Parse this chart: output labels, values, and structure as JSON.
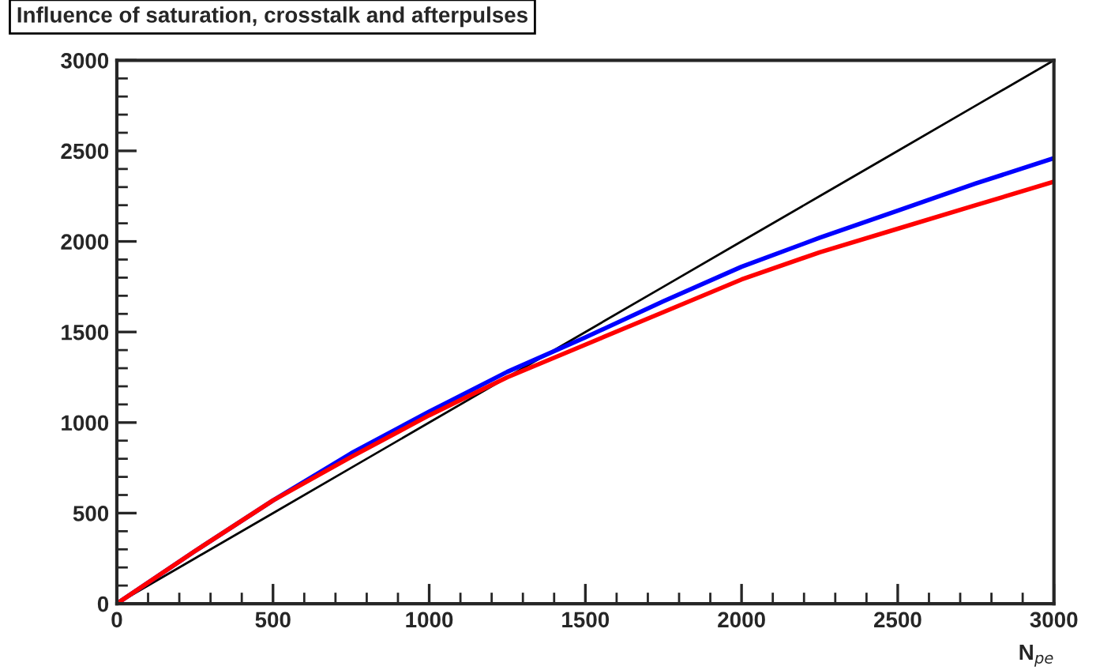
{
  "chart_data": {
    "type": "line",
    "title": "Influence of saturation, crosstalk and afterpulses",
    "xlabel": "N$_{pe}$",
    "x": [
      0,
      250,
      500,
      750,
      1000,
      1250,
      1500,
      1750,
      2000,
      2250,
      2500,
      2750,
      3000
    ],
    "series": [
      {
        "color": "#000000",
        "values": [
          0,
          250,
          500,
          750,
          1000,
          1250,
          1500,
          1750,
          2000,
          2250,
          2500,
          2750,
          3000
        ]
      },
      {
        "color": "#0000ff",
        "values": [
          0,
          290,
          570,
          830,
          1060,
          1280,
          1470,
          1670,
          1860,
          2020,
          2170,
          2320,
          2460
        ]
      },
      {
        "color": "#ff0000",
        "values": [
          0,
          290,
          570,
          810,
          1040,
          1250,
          1430,
          1610,
          1790,
          1940,
          2070,
          2200,
          2330
        ]
      }
    ],
    "xlim": [
      0,
      3000
    ],
    "ylim": [
      0,
      3000
    ],
    "xticks": [
      0,
      500,
      1000,
      1500,
      2000,
      2500,
      3000
    ],
    "yticks": [
      0,
      500,
      1000,
      1500,
      2000,
      2500,
      3000
    ],
    "grid": false,
    "legend": false,
    "marker": "none",
    "line_style": "solid"
  }
}
